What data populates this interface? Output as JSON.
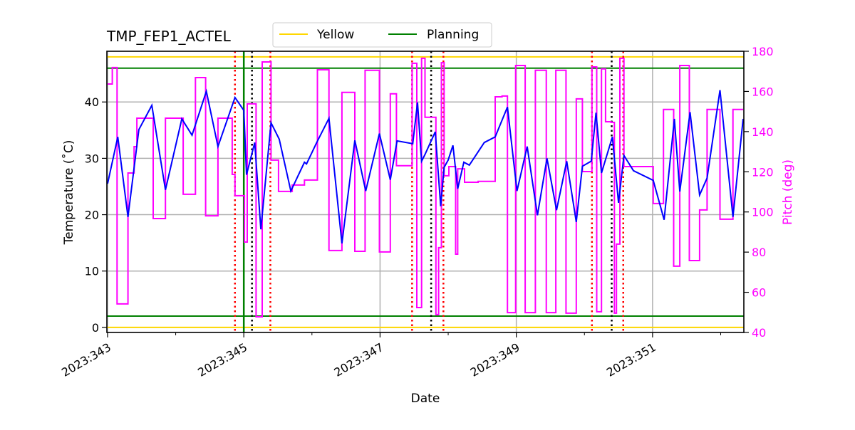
{
  "chart_data": {
    "type": "line",
    "title": "TMP_FEP1_ACTEL",
    "xlabel": "Date",
    "ylabel": "Temperature ($^\\circ$C)",
    "ylabel_display": "Temperature (˚C)",
    "y2label": "Pitch (deg)",
    "xlim": [
      342.99,
      352.34
    ],
    "ylim": [
      -0.9,
      49.0
    ],
    "y2lim": [
      40,
      180
    ],
    "xticks": [
      343,
      345,
      347,
      349,
      351
    ],
    "xtick_labels": [
      "2023:343",
      "2023:345",
      "2023:347",
      "2023:349",
      "2023:351"
    ],
    "xminor_ticks": [
      344,
      346,
      348,
      350,
      352
    ],
    "yticks": [
      0,
      10,
      20,
      30,
      40
    ],
    "y2ticks": [
      40,
      60,
      80,
      100,
      120,
      140,
      160,
      180
    ],
    "grid": true,
    "legend": {
      "placement": "top-center",
      "entries": [
        {
          "name": "Yellow",
          "color": "#ffd700"
        },
        {
          "name": "Planning",
          "color": "#008000"
        }
      ]
    },
    "colors": {
      "temperature": "#0000ff",
      "pitch": "#ff00ff",
      "yellow": "#ffd700",
      "planning": "#008000",
      "red_marker": "#ff0000",
      "black_marker": "#000000",
      "grid": "#b0b0b0"
    },
    "hlines": {
      "yellow": [
        0,
        48
      ],
      "planning": [
        2,
        46
      ]
    },
    "planning_vline": 345.0,
    "red_dotted_vlines": [
      344.87,
      345.39,
      347.47,
      347.93,
      350.11,
      350.57
    ],
    "black_dotted_vlines": [
      345.12,
      347.75,
      350.4
    ],
    "temperature": {
      "x": [
        343.0,
        343.15,
        343.3,
        343.46,
        343.65,
        343.85,
        344.09,
        344.24,
        344.45,
        344.62,
        344.87,
        345.0,
        345.04,
        345.16,
        345.25,
        345.4,
        345.52,
        345.69,
        345.89,
        345.92,
        346.07,
        346.25,
        346.44,
        346.63,
        346.79,
        346.99,
        347.15,
        347.25,
        347.48,
        347.55,
        347.61,
        347.66,
        347.81,
        347.89,
        347.94,
        348.0,
        348.07,
        348.14,
        348.23,
        348.31,
        348.53,
        348.69,
        348.87,
        349.01,
        349.16,
        349.31,
        349.45,
        349.59,
        349.74,
        349.88,
        349.97,
        350.1,
        350.17,
        350.25,
        350.41,
        350.5,
        350.58,
        350.72,
        351.01,
        351.17,
        351.32,
        351.4,
        351.55,
        351.69,
        351.8,
        351.99,
        352.18,
        352.33
      ],
      "y": [
        25.5,
        33.8,
        19.6,
        35.1,
        39.4,
        24.4,
        37.0,
        34.1,
        41.9,
        32.1,
        40.8,
        38.5,
        27.1,
        32.8,
        17.4,
        36.3,
        33.4,
        24.2,
        29.3,
        29.0,
        32.8,
        37.1,
        14.9,
        33.2,
        24.2,
        34.4,
        26.2,
        33.1,
        32.6,
        39.9,
        29.5,
        30.7,
        34.7,
        21.5,
        28.4,
        29.7,
        32.3,
        24.6,
        29.3,
        28.8,
        32.8,
        33.8,
        39.1,
        24.2,
        32.1,
        19.9,
        30.0,
        20.8,
        29.5,
        18.7,
        28.6,
        29.5,
        38.1,
        27.4,
        33.8,
        22.1,
        30.5,
        27.8,
        26.1,
        19.1,
        37.0,
        24.1,
        38.2,
        23.5,
        26.5,
        42.1,
        19.6,
        37.0
      ]
    },
    "pitch_steps": {
      "x": [
        343.0,
        343.07,
        343.14,
        343.3,
        343.39,
        343.43,
        343.67,
        343.85,
        344.11,
        344.29,
        344.44,
        344.62,
        344.83,
        344.87,
        345.01,
        345.05,
        345.18,
        345.27,
        345.4,
        345.51,
        345.71,
        345.89,
        346.08,
        346.25,
        346.44,
        346.63,
        346.78,
        346.99,
        347.15,
        347.24,
        347.47,
        347.54,
        347.61,
        347.66,
        347.82,
        347.86,
        347.9,
        347.94,
        348.01,
        348.11,
        348.14,
        348.24,
        348.44,
        348.69,
        348.79,
        348.87,
        348.99,
        349.13,
        349.28,
        349.44,
        349.58,
        349.73,
        349.88,
        349.97,
        350.11,
        350.18,
        350.25,
        350.31,
        350.39,
        350.44,
        350.47,
        350.52,
        350.58,
        351.01,
        351.16,
        351.31,
        351.4,
        351.54,
        351.69,
        351.8,
        351.99,
        352.18,
        352.33
      ],
      "y": [
        163.7,
        171.9,
        54.2,
        119.4,
        132.5,
        146.7,
        96.7,
        146.7,
        108.8,
        166.9,
        98.1,
        146.7,
        118.7,
        108.1,
        85.0,
        153.8,
        47.8,
        174.7,
        125.8,
        110.2,
        113.4,
        115.9,
        170.8,
        80.8,
        159.5,
        80.4,
        170.5,
        80.1,
        158.8,
        123.0,
        174.0,
        52.4,
        176.5,
        147.1,
        48.9,
        82.2,
        174.3,
        118.0,
        122.6,
        79.0,
        121.5,
        114.8,
        115.2,
        157.3,
        157.7,
        49.9,
        172.9,
        49.9,
        170.5,
        49.9,
        170.5,
        49.6,
        156.3,
        120.1,
        172.2,
        50.3,
        171.2,
        144.9,
        144.6,
        49.6,
        84.0,
        176.5,
        122.6,
        104.2,
        151.0,
        73.0,
        172.9,
        75.8,
        101.0,
        151.0,
        96.4,
        151.0,
        151.0
      ]
    }
  }
}
